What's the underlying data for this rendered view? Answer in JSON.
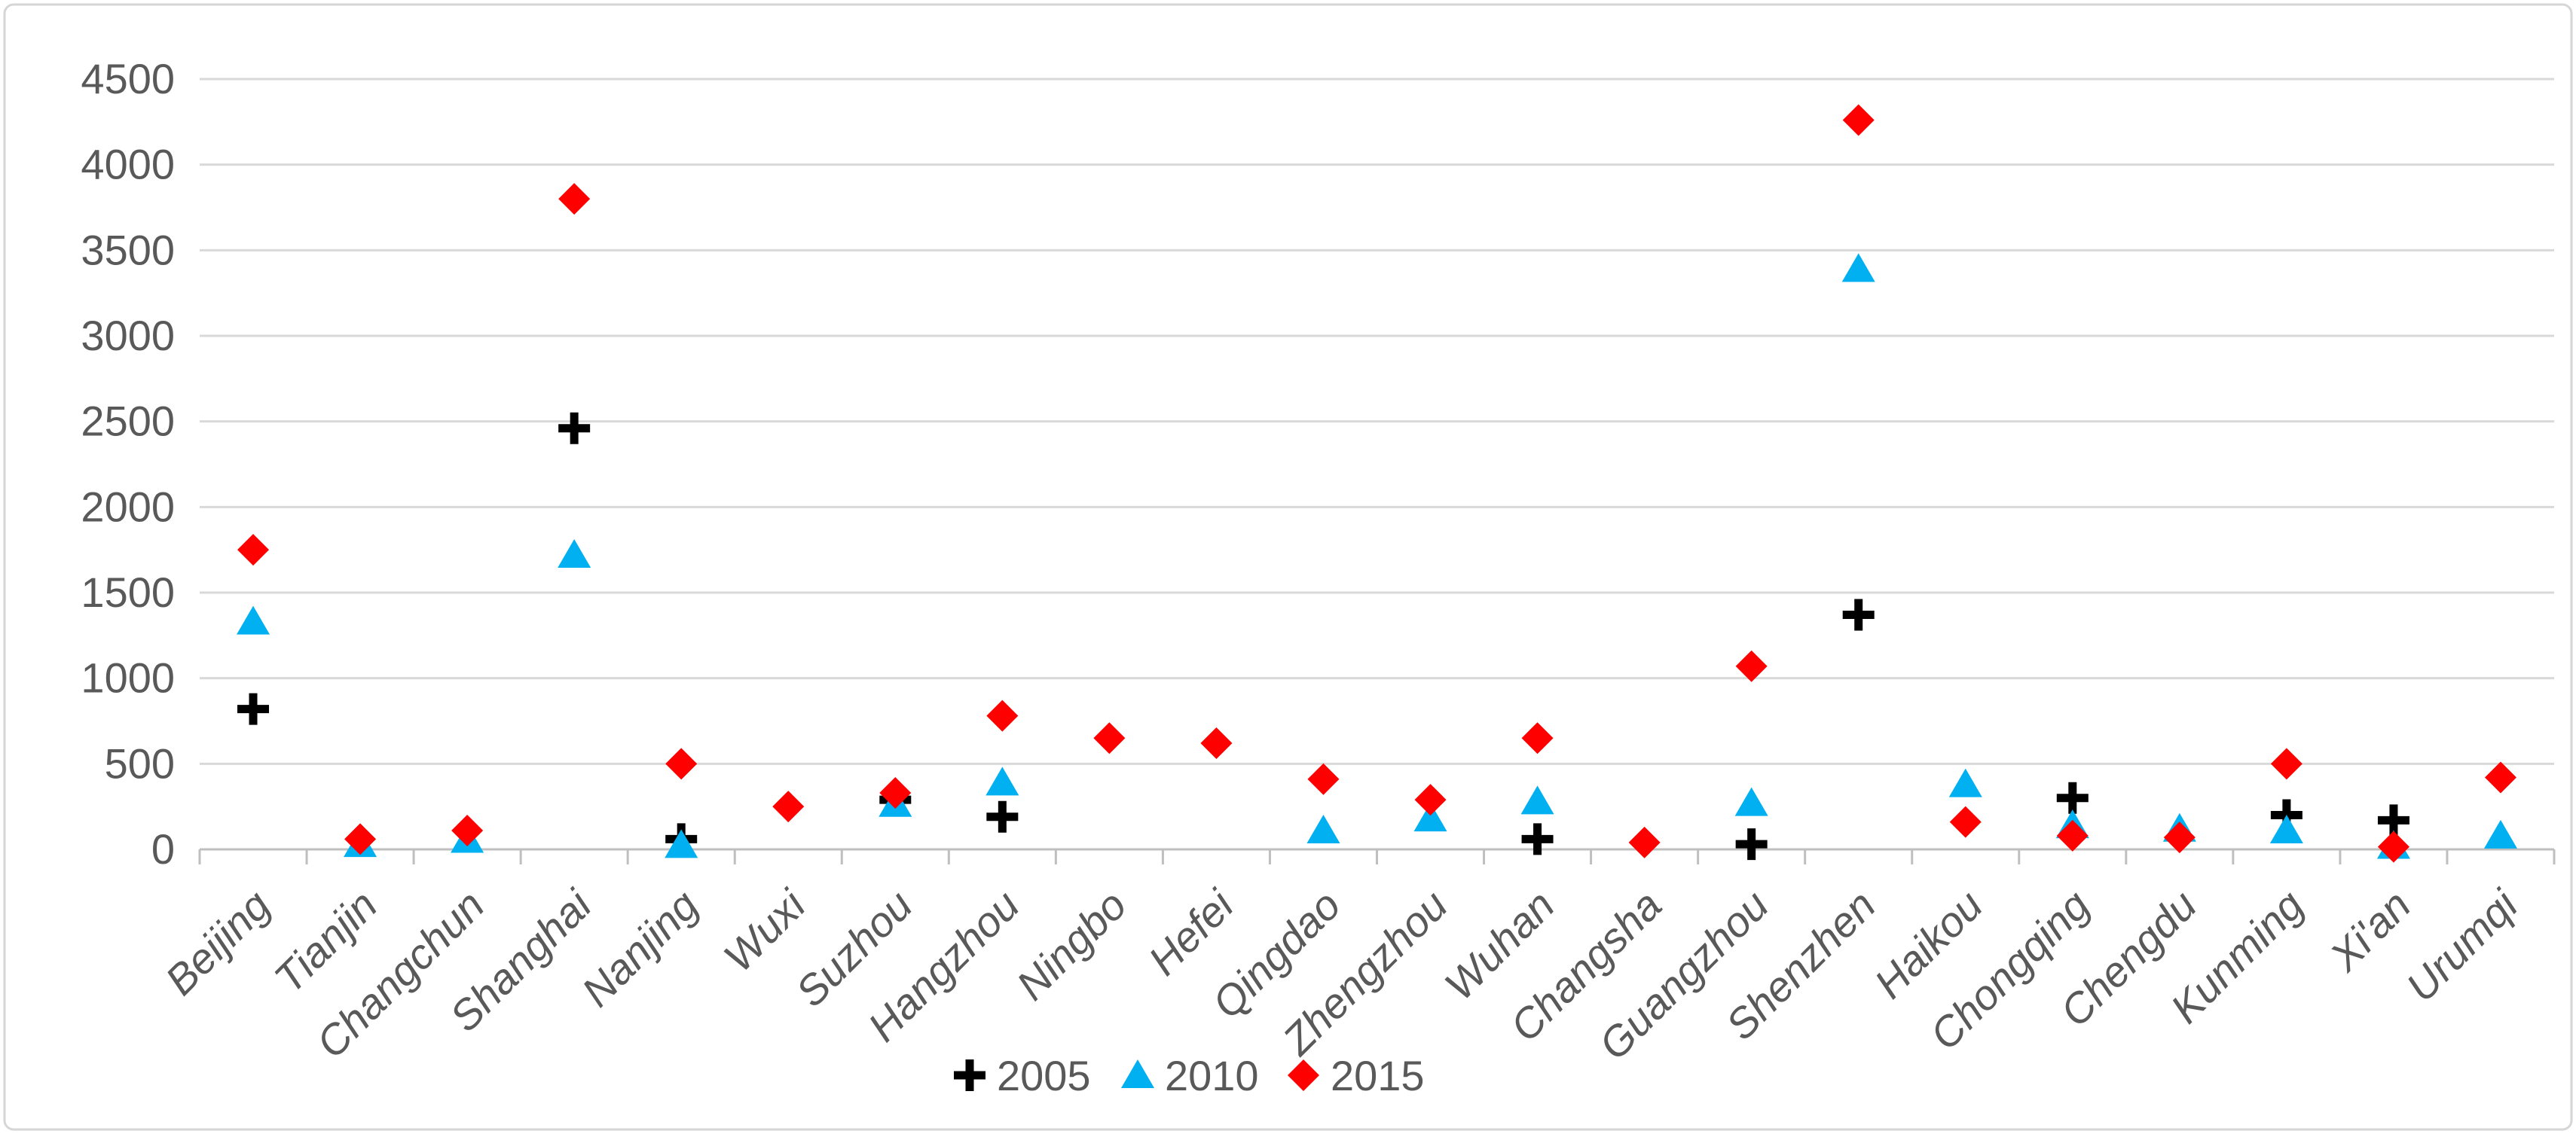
{
  "chart_data": {
    "type": "scatter",
    "title": "",
    "xlabel": "",
    "ylabel": "",
    "categories": [
      "Beijing",
      "Tianjin",
      "Changchun",
      "Shanghai",
      "Nanjing",
      "Wuxi",
      "Suzhou",
      "Hangzhou",
      "Ningbo",
      "Hefei",
      "Qingdao",
      "Zhengzhou",
      "Wuhan",
      "Changsha",
      "Guangzhou",
      "Shenzhen",
      "Haikou",
      "Chongqing",
      "Chengdu",
      "Kunming",
      "Xi'an",
      "Urumqi"
    ],
    "series": [
      {
        "name": "2005",
        "marker": "plus",
        "color": "#000000",
        "values": [
          820,
          null,
          null,
          2460,
          60,
          null,
          290,
          190,
          null,
          null,
          null,
          null,
          60,
          null,
          30,
          1370,
          null,
          300,
          null,
          200,
          170,
          null
        ]
      },
      {
        "name": "2010",
        "marker": "triangle",
        "color": "#00B0F0",
        "values": [
          1330,
          30,
          55,
          1720,
          25,
          null,
          265,
          390,
          null,
          null,
          110,
          180,
          280,
          null,
          270,
          3390,
          380,
          140,
          120,
          110,
          20,
          80
        ]
      },
      {
        "name": "2015",
        "marker": "diamond",
        "color": "#FF0000",
        "values": [
          1750,
          60,
          110,
          3800,
          500,
          250,
          330,
          780,
          650,
          620,
          410,
          290,
          650,
          40,
          1070,
          4260,
          160,
          80,
          70,
          500,
          15,
          420
        ]
      }
    ],
    "y_ticks": [
      0,
      500,
      1000,
      1500,
      2000,
      2500,
      3000,
      3500,
      4000,
      4500
    ],
    "ylim": [
      0,
      4500
    ],
    "grid": true,
    "legend_position": "bottom"
  },
  "colors": {
    "gridline": "#D9D9D9",
    "axis_line": "#BFBFBF",
    "tick_mark": "#BFBFBF",
    "y_label_text": "#595959",
    "x_label_text": "#595959",
    "legend_text": "#595959",
    "figure_border": "#D6D6D6",
    "background": "#FFFFFF"
  }
}
